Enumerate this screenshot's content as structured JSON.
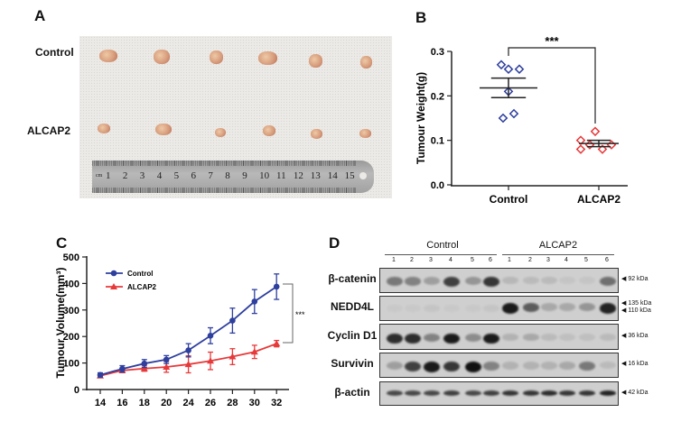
{
  "panel_labels": {
    "a": "A",
    "b": "B",
    "c": "C",
    "d": "D"
  },
  "panel_a": {
    "row_labels": [
      "Control",
      "ALCAP2"
    ],
    "ruler_unit": "cm",
    "ruler_numbers": [
      "1",
      "2",
      "3",
      "4",
      "5",
      "6",
      "7",
      "8",
      "9",
      "10",
      "11",
      "12",
      "13",
      "14",
      "15"
    ]
  },
  "chart_data": [
    {
      "type": "scatter",
      "panel": "B",
      "ylabel": "Tumour Weight(g)",
      "xlabel": "",
      "categories": [
        "Control",
        "ALCAP2"
      ],
      "ylim": [
        0,
        0.3
      ],
      "yticks": [
        "0.0",
        "0.1",
        "0.2",
        "0.3"
      ],
      "series": [
        {
          "name": "Control",
          "color": "#2e3f9e",
          "values": [
            0.27,
            0.26,
            0.26,
            0.21,
            0.15,
            0.16
          ],
          "mean": 0.218,
          "sem": 0.022
        },
        {
          "name": "ALCAP2",
          "color": "#e8393a",
          "values": [
            0.12,
            0.1,
            0.09,
            0.08,
            0.08,
            0.09
          ],
          "mean": 0.093,
          "sem": 0.007
        }
      ],
      "annotation": "***"
    },
    {
      "type": "line",
      "panel": "C",
      "ylabel": "Tumour Volume(mm³)",
      "xlabel": "",
      "x": [
        "14",
        "16",
        "18",
        "20",
        "24",
        "26",
        "28",
        "30",
        "32"
      ],
      "ylim": [
        0,
        500
      ],
      "yticks": [
        "0",
        "100",
        "200",
        "300",
        "400",
        "500"
      ],
      "legend_position": "top-left",
      "series": [
        {
          "name": "Control",
          "color": "#2e3f9e",
          "marker": "circle",
          "values": [
            55,
            78,
            98,
            113,
            148,
            203,
            260,
            332,
            388
          ],
          "errors": [
            8,
            12,
            15,
            15,
            25,
            30,
            47,
            45,
            48
          ]
        },
        {
          "name": "ALCAP2",
          "color": "#e8393a",
          "marker": "triangle",
          "values": [
            52,
            72,
            79,
            85,
            95,
            108,
            124,
            142,
            173
          ],
          "errors": [
            5,
            8,
            10,
            20,
            32,
            33,
            30,
            25,
            12
          ]
        }
      ],
      "annotation": "***"
    }
  ],
  "panel_d": {
    "groups": [
      "Control",
      "ALCAP2"
    ],
    "lanes": [
      "1",
      "2",
      "3",
      "4",
      "5",
      "6",
      "1",
      "2",
      "3",
      "4",
      "5",
      "6"
    ],
    "blots": [
      {
        "name": "β-catenin",
        "kda": [
          "92 kDa"
        ],
        "intensity": [
          0.45,
          0.4,
          0.25,
          0.75,
          0.3,
          0.8,
          0.12,
          0.1,
          0.1,
          0.05,
          0.05,
          0.5
        ]
      },
      {
        "name": "NEDD4L",
        "kda": [
          "135 kDa",
          "110 kDa"
        ],
        "intensity": [
          0.03,
          0.03,
          0.05,
          0.03,
          0.03,
          0.05,
          0.95,
          0.6,
          0.2,
          0.2,
          0.3,
          0.9
        ]
      },
      {
        "name": "Cyclin D1",
        "kda": [
          "36 kDa"
        ],
        "intensity": [
          0.85,
          0.85,
          0.4,
          0.95,
          0.35,
          0.95,
          0.15,
          0.2,
          0.1,
          0.08,
          0.08,
          0.1
        ]
      },
      {
        "name": "Survivin",
        "kda": [
          "16 kDa"
        ],
        "intensity": [
          0.25,
          0.75,
          0.95,
          0.8,
          1.0,
          0.4,
          0.15,
          0.15,
          0.15,
          0.2,
          0.45,
          0.1
        ]
      },
      {
        "name": "β-actin",
        "kda": [
          "42 kDa"
        ],
        "intensity": [
          0.7,
          0.7,
          0.7,
          0.75,
          0.7,
          0.75,
          0.8,
          0.8,
          0.85,
          0.8,
          0.8,
          0.9
        ]
      }
    ]
  }
}
